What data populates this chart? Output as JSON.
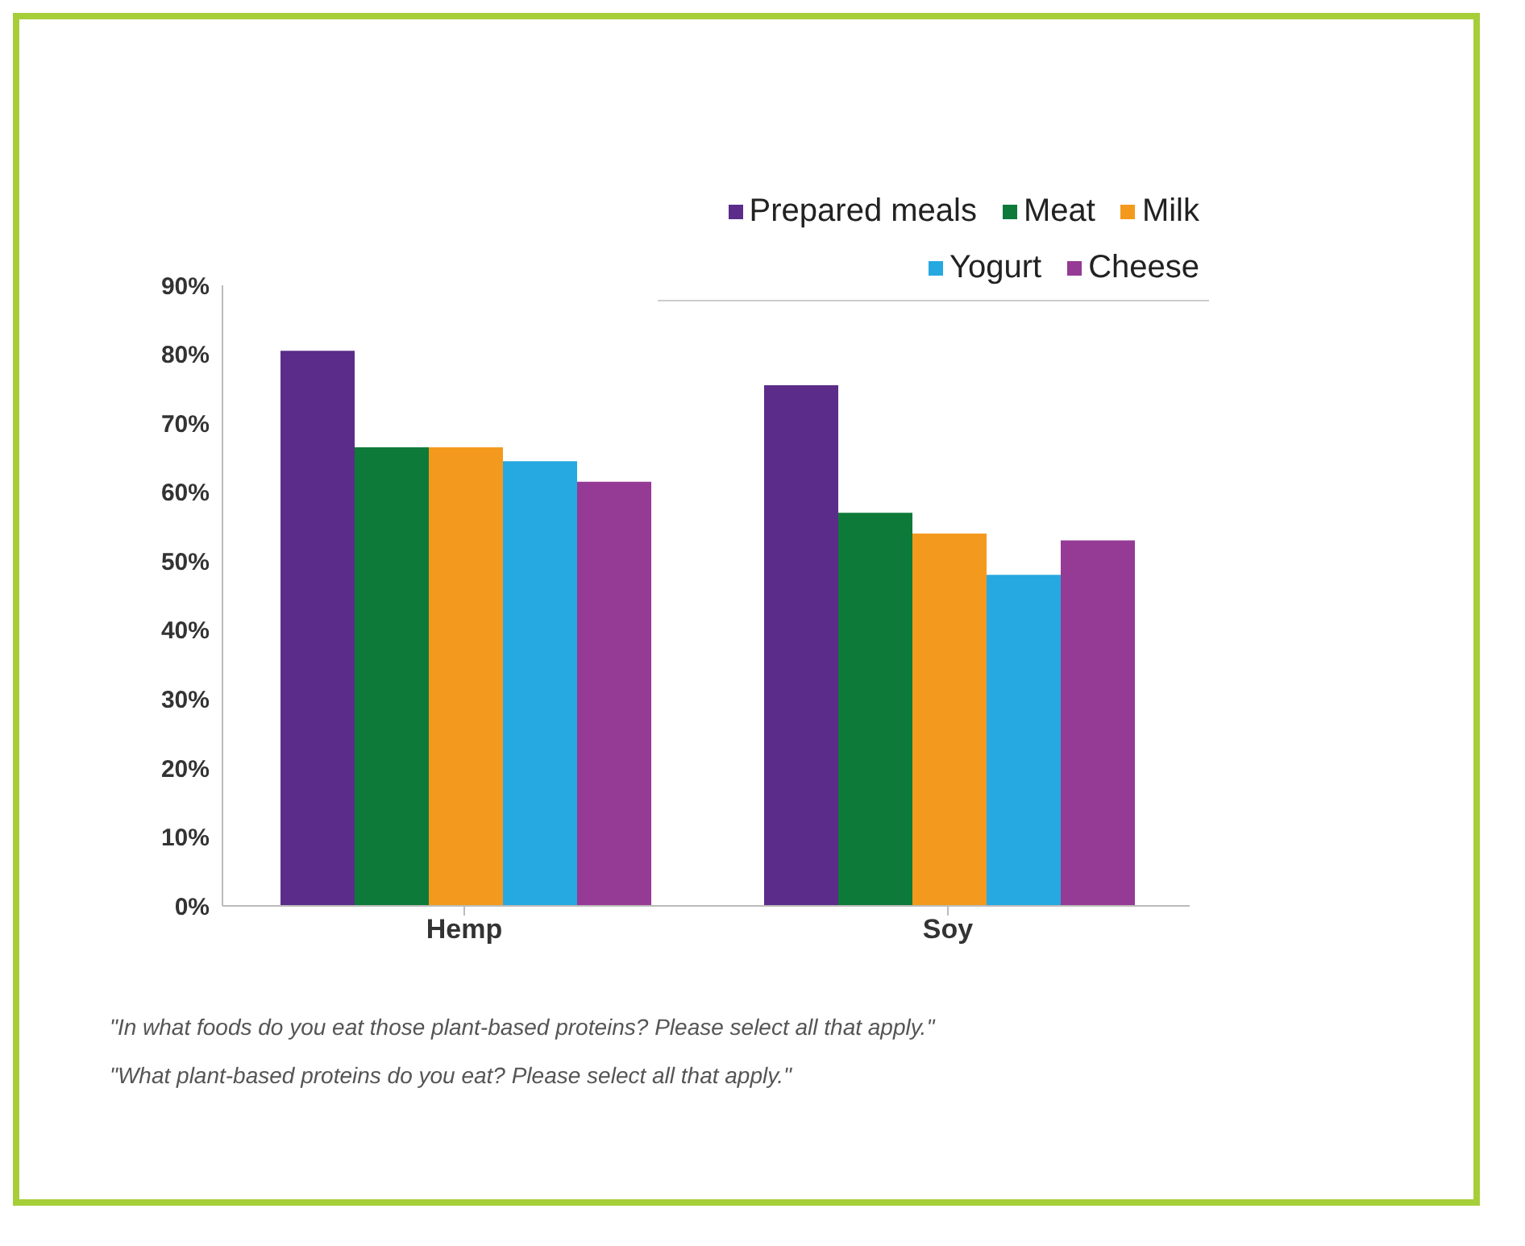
{
  "chart_data": {
    "type": "bar",
    "categories": [
      "Hemp",
      "Soy"
    ],
    "series": [
      {
        "name": "Prepared meals",
        "color": "#5b2c8a",
        "values": [
          80.5,
          75.5
        ]
      },
      {
        "name": "Meat",
        "color": "#0e7a3a",
        "values": [
          66.5,
          57
        ]
      },
      {
        "name": "Milk",
        "color": "#f39a1e",
        "values": [
          66.5,
          54
        ]
      },
      {
        "name": "Yogurt",
        "color": "#26a8e0",
        "values": [
          64.5,
          48
        ]
      },
      {
        "name": "Cheese",
        "color": "#953a95",
        "values": [
          61.5,
          53
        ]
      }
    ],
    "ylim": [
      0,
      90
    ],
    "yticks": [
      {
        "value": 0,
        "label": "0%"
      },
      {
        "value": 10,
        "label": "10%"
      },
      {
        "value": 20,
        "label": "20%"
      },
      {
        "value": 30,
        "label": "30%"
      },
      {
        "value": 40,
        "label": "40%"
      },
      {
        "value": 50,
        "label": "50%"
      },
      {
        "value": 60,
        "label": "60%"
      },
      {
        "value": 70,
        "label": "70%"
      },
      {
        "value": 80,
        "label": "80%"
      },
      {
        "value": 90,
        "label": "90%"
      }
    ],
    "grid": false,
    "legend": "top right",
    "annotations": [
      "\"In what foods do you eat those plant-based proteins? Please select all that apply.\"",
      "\"What plant-based proteins do you eat? Please select all that apply.\""
    ]
  }
}
